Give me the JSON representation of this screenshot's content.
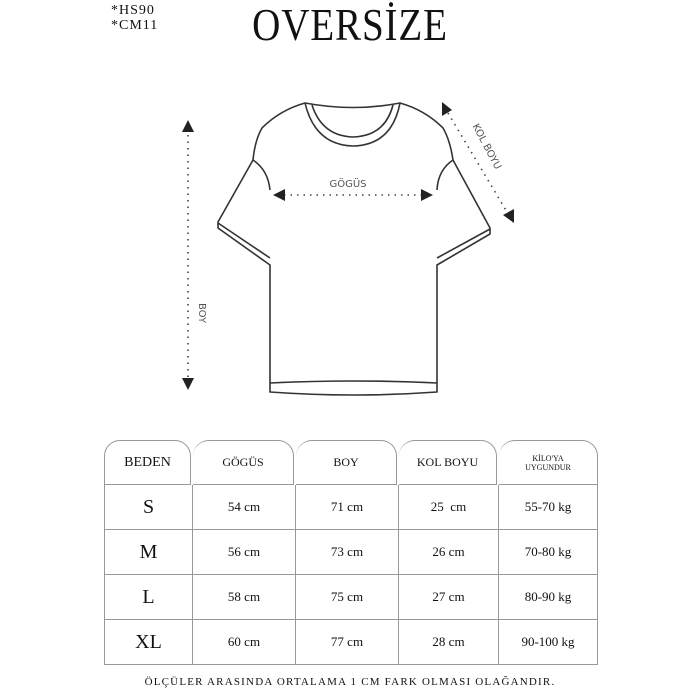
{
  "header": {
    "codes": [
      "*HS90",
      "*CM11"
    ],
    "title": "OVERSİZE"
  },
  "diagram": {
    "chest_label": "GÖGÜS",
    "sleeve_label": "KOL BOYU",
    "length_label": "BOY"
  },
  "table": {
    "headers": [
      "BEDEN",
      "GÖGÜS",
      "BOY",
      "KOL BOYU",
      "KİLO'YA UYGUNDUR"
    ],
    "rows": [
      [
        "S",
        "54 cm",
        "71 cm",
        "25  cm",
        "55-70 kg"
      ],
      [
        "M",
        "56 cm",
        "73 cm",
        "26 cm",
        "70-80 kg"
      ],
      [
        "L",
        "58 cm",
        "75 cm",
        "27 cm",
        "80-90 kg"
      ],
      [
        "XL",
        "60 cm",
        "77 cm",
        "28 cm",
        "90-100 kg"
      ]
    ]
  },
  "footer": {
    "note": "ÖLÇÜLER ARASINDA ORTALAMA 1 CM FARK OLMASI OLAĞANDIR."
  }
}
